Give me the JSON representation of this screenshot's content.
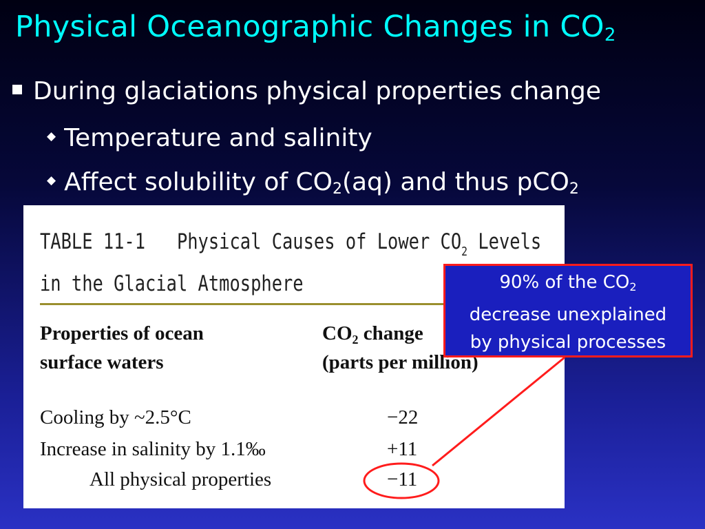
{
  "slide": {
    "title": {
      "text": "Physical Oceanographic Changes in CO",
      "subscript": "2"
    },
    "bullets": [
      {
        "text": "During glaciations physical properties change"
      }
    ],
    "sub_bullets": [
      {
        "text": "Temperature and salinity"
      },
      {
        "prefix": "Affect solubility of CO",
        "sub1": "2",
        "middle": "(aq) and thus pCO",
        "sub2": "2"
      }
    ]
  },
  "table": {
    "title_line1": "TABLE 11-1   Physical Causes of Lower CO",
    "title_line1_sub": "2",
    "title_line1_suffix": " Levels",
    "title_line2": "in the Glacial Atmosphere",
    "header_left_1": "Properties of ocean",
    "header_left_2": "surface waters",
    "header_right_1": "CO",
    "header_right_1_sub": "2",
    "header_right_1_suffix": " change",
    "header_right_2": "(parts per million)",
    "rows": [
      {
        "label": "Cooling by ~2.5°C",
        "value": "−22"
      },
      {
        "label": "Increase in salinity by 1.1‰",
        "value": "+11"
      },
      {
        "label": "All physical properties",
        "value": "−11"
      }
    ]
  },
  "callout": {
    "line1": "90% of the CO",
    "line1_sub": "2",
    "line2": "decrease unexplained",
    "line3": "by physical processes"
  },
  "colors": {
    "title": "#00ffff",
    "callout_bg": "#1a1fbe",
    "callout_border": "#ff1c1c",
    "rule": "#9a8f2e"
  }
}
